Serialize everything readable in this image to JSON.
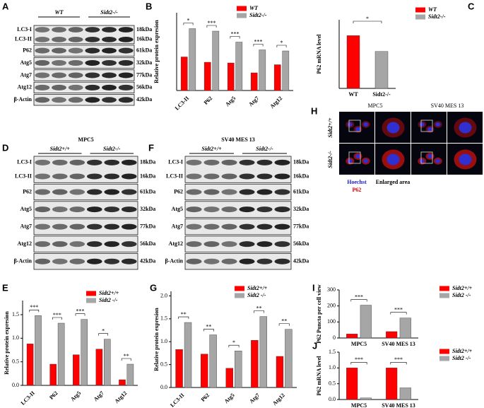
{
  "blots": [
    {
      "panel": "A",
      "groups": [
        "WT",
        "Sidt2-/-"
      ],
      "rows": [
        {
          "labels": [
            "LC3-I",
            "LC3-II"
          ],
          "kda": [
            "18kDa",
            "16kDa"
          ]
        },
        {
          "labels": [
            "P62"
          ],
          "kda": [
            "61kDa"
          ]
        },
        {
          "labels": [
            "Atg5"
          ],
          "kda": [
            "32kDa"
          ]
        },
        {
          "labels": [
            "Atg7"
          ],
          "kda": [
            "77kDa"
          ]
        },
        {
          "labels": [
            "Atg12"
          ],
          "kda": [
            "56kDa"
          ]
        },
        {
          "labels": [
            "β-Actin"
          ],
          "kda": [
            "42kDa"
          ]
        }
      ]
    },
    {
      "panel": "D",
      "title": "MPC5",
      "groups": [
        "Sidt2+/+",
        "Sidt2-/-"
      ],
      "rows": [
        {
          "labels": [
            "LC3-I",
            "LC3-II"
          ],
          "kda": [
            "18kDa",
            "16kDa"
          ]
        },
        {
          "labels": [
            "P62"
          ],
          "kda": [
            "61kDa"
          ]
        },
        {
          "labels": [
            "Atg5"
          ],
          "kda": [
            "32kDa"
          ]
        },
        {
          "labels": [
            "Atg7"
          ],
          "kda": [
            "77kDa"
          ]
        },
        {
          "labels": [
            "Atg12"
          ],
          "kda": [
            "56kDa"
          ]
        },
        {
          "labels": [
            "β-Actin"
          ],
          "kda": [
            "42kDa"
          ]
        }
      ]
    },
    {
      "panel": "F",
      "title": "SV40 MES 13",
      "groups": [
        "Sidt2+/+",
        "Sidt2-/-"
      ],
      "rows": [
        {
          "labels": [
            "LC3-I",
            "LC3-II"
          ],
          "kda": [
            "18kDa",
            "16kDa"
          ]
        },
        {
          "labels": [
            "P62"
          ],
          "kda": [
            "61kDa"
          ]
        },
        {
          "labels": [
            "Atg5"
          ],
          "kda": [
            "32kDa"
          ]
        },
        {
          "labels": [
            "Atg7"
          ],
          "kda": [
            "77kDa"
          ]
        },
        {
          "labels": [
            "Atg12"
          ],
          "kda": [
            "56kDa"
          ]
        },
        {
          "labels": [
            "β-Actin"
          ],
          "kda": [
            "42kDa"
          ]
        }
      ]
    }
  ],
  "microscopy": {
    "panel": "H",
    "columns": [
      "MPC5",
      "SV40 MES 13"
    ],
    "rows": [
      "Sidt2+/+",
      "Sidt2-/-"
    ],
    "stains": [
      "Hoechst",
      "P62"
    ],
    "enlarged": "Enlarged area"
  },
  "chart_data": [
    {
      "type": "bar",
      "panel": "B",
      "ylabel": "Relative protein expresion",
      "categories": [
        "LC3-II",
        "P62",
        "Atg5",
        "Atg7",
        "Atg12"
      ],
      "xlabel_rotation": 45,
      "series": [
        {
          "name": "WT",
          "color": "#ff0000",
          "values": [
            0.95,
            0.8,
            0.78,
            0.5,
            0.73
          ]
        },
        {
          "name": "Sidt2-/-",
          "color": "#a6a6a6",
          "values": [
            1.75,
            1.68,
            1.37,
            1.15,
            1.12
          ]
        }
      ],
      "significance": [
        "*",
        "***",
        "***",
        "***",
        "*"
      ],
      "ylim": [
        0,
        2.2
      ]
    },
    {
      "type": "bar",
      "panel": "C",
      "ylabel": "P62 mRNA level",
      "categories": [
        "WT",
        "Sidt2-/-"
      ],
      "xlabel_rotation": 0,
      "series": [
        {
          "name": "WT",
          "color": "#ff0000",
          "values": [
            1.0,
            null
          ]
        },
        {
          "name": "Sidt2-/-",
          "color": "#a6a6a6",
          "values": [
            null,
            0.7
          ]
        }
      ],
      "significance": [
        "*"
      ],
      "ylim": [
        0,
        1.3
      ]
    },
    {
      "type": "bar",
      "panel": "E",
      "ylabel": "Relative protein expresion",
      "categories": [
        "LC3-II",
        "P62",
        "Atg5",
        "Atg7",
        "Atg12"
      ],
      "xlabel_rotation": 45,
      "series": [
        {
          "name": "Sidt2+/+",
          "color": "#ff0000",
          "values": [
            0.88,
            0.45,
            0.65,
            0.77,
            0.12
          ]
        },
        {
          "name": "Sidt2 -/-",
          "color": "#a6a6a6",
          "values": [
            1.48,
            1.32,
            1.4,
            0.98,
            0.45
          ]
        }
      ],
      "significance": [
        "***",
        "***",
        "***",
        "*",
        "**"
      ],
      "ylim": [
        0,
        1.8
      ],
      "yticks": [
        {
          "value": 0,
          "label": "0.0"
        },
        {
          "value": 0.5,
          "label": "0.5"
        },
        {
          "value": 1,
          "label": "1.0"
        },
        {
          "value": 1.5,
          "label": "1.5"
        }
      ]
    },
    {
      "type": "bar",
      "panel": "G",
      "ylabel": "Relative protein expresion",
      "categories": [
        "LC3-II",
        "P62",
        "Atg5",
        "Atg7",
        "Atg12"
      ],
      "xlabel_rotation": 45,
      "series": [
        {
          "name": "Sidt2+/+",
          "color": "#ff0000",
          "values": [
            0.83,
            0.73,
            0.42,
            1.03,
            0.68
          ]
        },
        {
          "name": "Sidt2 -/-",
          "color": "#a6a6a6",
          "values": [
            1.42,
            1.15,
            0.8,
            1.55,
            1.27
          ]
        }
      ],
      "significance": [
        "**",
        "**",
        "*",
        "**",
        "**"
      ],
      "ylim": [
        0,
        2.1
      ],
      "yticks": [
        {
          "value": 0,
          "label": "0.0"
        },
        {
          "value": 0.5,
          "label": "0.5"
        },
        {
          "value": 1,
          "label": "1.0"
        },
        {
          "value": 1.5,
          "label": "1.5"
        },
        {
          "value": 2,
          "label": "2.0"
        }
      ]
    },
    {
      "type": "bar",
      "panel": "I",
      "ylabel": "P62 Puncta per cell view",
      "categories": [
        "MPC5",
        "SV40 MES 13"
      ],
      "xlabel_rotation": 0,
      "series": [
        {
          "name": "Sidt2+/+",
          "color": "#ff0000",
          "values": [
            25,
            40
          ]
        },
        {
          "name": "Sidt2 -/-",
          "color": "#a6a6a6",
          "values": [
            205,
            125
          ]
        }
      ],
      "significance": [
        "***",
        "***"
      ],
      "ylim": [
        0,
        300
      ],
      "yticks": [
        0,
        100,
        200,
        300
      ]
    },
    {
      "type": "bar",
      "panel": "J",
      "ylabel": "P62 mRNA level",
      "categories": [
        "MPC5",
        "SV40 MES 13"
      ],
      "xlabel_rotation": 0,
      "series": [
        {
          "name": "Sidt2+/+",
          "color": "#ff0000",
          "values": [
            1.0,
            1.0
          ]
        },
        {
          "name": "Sidt2 -/-",
          "color": "#a6a6a6",
          "values": [
            0.05,
            0.37
          ]
        }
      ],
      "significance": [
        "***",
        "***"
      ],
      "ylim": [
        0,
        1.5
      ],
      "yticks": [
        {
          "value": 0,
          "label": "0.0"
        },
        {
          "value": 0.5,
          "label": "0.5"
        },
        {
          "value": 1,
          "label": "1.0"
        },
        {
          "value": 1.5,
          "label": "1.5"
        }
      ]
    }
  ]
}
